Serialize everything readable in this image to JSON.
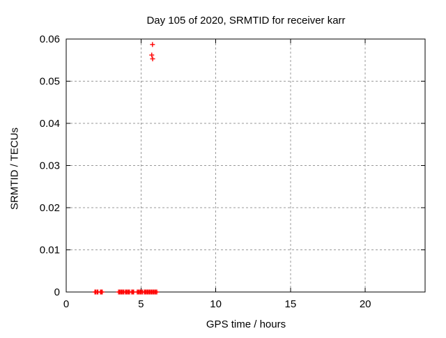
{
  "chart_data": {
    "type": "scatter",
    "title": "Day 105 of 2020, SRMTID for receiver karr",
    "xlabel": "GPS time / hours",
    "ylabel": "SRMTID / TECUs",
    "xlim": [
      0,
      24
    ],
    "ylim": [
      0,
      0.06
    ],
    "xtick_values": [
      0,
      5,
      10,
      15,
      20
    ],
    "xtick_labels": [
      "0",
      "5",
      "10",
      "15",
      "20"
    ],
    "ytick_values": [
      0,
      0.01,
      0.02,
      0.03,
      0.04,
      0.05,
      0.06
    ],
    "ytick_labels": [
      "0",
      "0.01",
      "0.02",
      "0.03",
      "0.04",
      "0.05",
      "0.06"
    ],
    "grid": "dashed",
    "legend": "none",
    "marker": "plus",
    "colors": {
      "marker": "#ff0000",
      "grid": "#999999",
      "axis": "#000000",
      "text": "#000000",
      "background": "#ffffff"
    },
    "series": [
      {
        "name": "SRMTID",
        "points": [
          [
            5.72,
            0.0562
          ],
          [
            5.77,
            0.0587
          ],
          [
            5.78,
            0.0553
          ],
          [
            1.92,
            0
          ],
          [
            1.97,
            0
          ],
          [
            2.06,
            0
          ],
          [
            2.12,
            0
          ],
          [
            2.29,
            0
          ],
          [
            2.35,
            0
          ],
          [
            2.41,
            0
          ],
          [
            3.5,
            0
          ],
          [
            3.57,
            0
          ],
          [
            3.64,
            0
          ],
          [
            3.71,
            0
          ],
          [
            3.78,
            0
          ],
          [
            3.85,
            0
          ],
          [
            3.96,
            0
          ],
          [
            4.03,
            0
          ],
          [
            4.1,
            0
          ],
          [
            4.17,
            0
          ],
          [
            4.24,
            0
          ],
          [
            4.38,
            0
          ],
          [
            4.45,
            0
          ],
          [
            4.51,
            0
          ],
          [
            4.75,
            0
          ],
          [
            4.82,
            0
          ],
          [
            4.89,
            0
          ],
          [
            4.96,
            0
          ],
          [
            5.03,
            0
          ],
          [
            5.1,
            0
          ],
          [
            5.22,
            0
          ],
          [
            5.29,
            0
          ],
          [
            5.36,
            0
          ],
          [
            5.43,
            0
          ],
          [
            5.5,
            0
          ],
          [
            5.57,
            0
          ],
          [
            5.64,
            0
          ],
          [
            5.71,
            0
          ],
          [
            5.78,
            0
          ],
          [
            5.85,
            0
          ],
          [
            5.92,
            0
          ],
          [
            5.99,
            0
          ],
          [
            6.06,
            0
          ]
        ]
      }
    ]
  }
}
